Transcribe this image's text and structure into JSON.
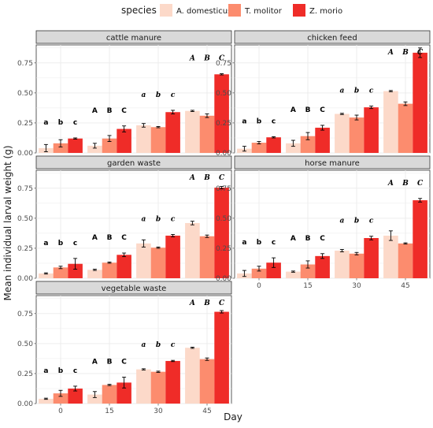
{
  "chart_data": {
    "type": "bar",
    "xlabel": "Day",
    "ylabel": "Mean individual larval weight (g)",
    "legend": {
      "title": "species",
      "position": "top",
      "items": [
        {
          "name": "A. domesticus",
          "color": "#fcd9c9"
        },
        {
          "name": "T. molitor",
          "color": "#fc8c6e"
        },
        {
          "name": "Z. morio",
          "color": "#ef2c28"
        }
      ]
    },
    "categories": [
      "0",
      "15",
      "30",
      "45"
    ],
    "x_ticks": [
      "0",
      "15",
      "30",
      "45"
    ],
    "y_ticks": [
      "0.00",
      "0.25",
      "0.50",
      "0.75"
    ],
    "ylim": [
      0,
      0.9
    ],
    "grid": true,
    "panels": [
      {
        "title": "cattle manure",
        "series": [
          {
            "name": "A. domesticus",
            "values": [
              0.04,
              0.06,
              0.23,
              0.35
            ],
            "errors": [
              0.03,
              0.02,
              0.015,
              0.005
            ]
          },
          {
            "name": "T. molitor",
            "values": [
              0.08,
              0.12,
              0.215,
              0.31
            ],
            "errors": [
              0.03,
              0.025,
              0.005,
              0.015
            ]
          },
          {
            "name": "Z. morio",
            "values": [
              0.12,
              0.2,
              0.34,
              0.655
            ],
            "errors": [
              0.005,
              0.025,
              0.015,
              0.005
            ]
          }
        ],
        "letters": [
          [
            "a",
            "b",
            "c"
          ],
          [
            "A",
            "B",
            "C"
          ],
          [
            "a",
            "b",
            "c"
          ],
          [
            "A",
            "B",
            "C"
          ]
        ]
      },
      {
        "title": "chicken feed",
        "series": [
          {
            "name": "A. domesticus",
            "values": [
              0.035,
              0.08,
              0.325,
              0.515
            ],
            "errors": [
              0.02,
              0.025,
              0.005,
              0.005
            ]
          },
          {
            "name": "T. molitor",
            "values": [
              0.085,
              0.14,
              0.295,
              0.41
            ],
            "errors": [
              0.01,
              0.03,
              0.02,
              0.015
            ]
          },
          {
            "name": "Z. morio",
            "values": [
              0.13,
              0.21,
              0.38,
              0.835
            ],
            "errors": [
              0.005,
              0.02,
              0.01,
              0.04
            ]
          }
        ],
        "letters": [
          [
            "a",
            "b",
            "c"
          ],
          [
            "A",
            "B",
            "C"
          ],
          [
            "a",
            "b",
            "c"
          ],
          [
            "A",
            "B",
            "C"
          ]
        ]
      },
      {
        "title": "garden waste",
        "series": [
          {
            "name": "A. domesticus",
            "values": [
              0.04,
              0.07,
              0.29,
              0.46
            ],
            "errors": [
              0.005,
              0.005,
              0.03,
              0.015
            ]
          },
          {
            "name": "T. molitor",
            "values": [
              0.09,
              0.13,
              0.255,
              0.35
            ],
            "errors": [
              0.01,
              0.005,
              0.005,
              0.01
            ]
          },
          {
            "name": "Z. morio",
            "values": [
              0.12,
              0.195,
              0.355,
              0.755
            ],
            "errors": [
              0.045,
              0.015,
              0.01,
              0.01
            ]
          }
        ],
        "letters": [
          [
            "a",
            "b",
            "c"
          ],
          [
            "A",
            "B",
            "C"
          ],
          [
            "a",
            "b",
            "c"
          ],
          [
            "A",
            "B",
            "C"
          ]
        ]
      },
      {
        "title": "horse manure",
        "series": [
          {
            "name": "A. domesticus",
            "values": [
              0.04,
              0.055,
              0.23,
              0.355
            ],
            "errors": [
              0.025,
              0.005,
              0.01,
              0.04
            ]
          },
          {
            "name": "T. molitor",
            "values": [
              0.08,
              0.115,
              0.205,
              0.29
            ],
            "errors": [
              0.02,
              0.03,
              0.01,
              0.005
            ]
          },
          {
            "name": "Z. morio",
            "values": [
              0.13,
              0.185,
              0.335,
              0.65
            ],
            "errors": [
              0.04,
              0.02,
              0.015,
              0.015
            ]
          }
        ],
        "letters": [
          [
            "a",
            "b",
            "c"
          ],
          [
            "A",
            "B",
            "C"
          ],
          [
            "a",
            "b",
            "c"
          ],
          [
            "A",
            "B",
            "C"
          ]
        ]
      },
      {
        "title": "vegetable waste",
        "series": [
          {
            "name": "A. domesticus",
            "values": [
              0.04,
              0.075,
              0.285,
              0.465
            ],
            "errors": [
              0.005,
              0.025,
              0.005,
              0.005
            ]
          },
          {
            "name": "T. molitor",
            "values": [
              0.085,
              0.155,
              0.265,
              0.37
            ],
            "errors": [
              0.025,
              0.005,
              0.005,
              0.01
            ]
          },
          {
            "name": "Z. morio",
            "values": [
              0.125,
              0.175,
              0.355,
              0.765
            ],
            "errors": [
              0.02,
              0.045,
              0.005,
              0.01
            ]
          }
        ],
        "letters": [
          [
            "a",
            "b",
            "c"
          ],
          [
            "A",
            "B",
            "C"
          ],
          [
            "a",
            "b",
            "c"
          ],
          [
            "A",
            "B",
            "C"
          ]
        ]
      }
    ]
  }
}
